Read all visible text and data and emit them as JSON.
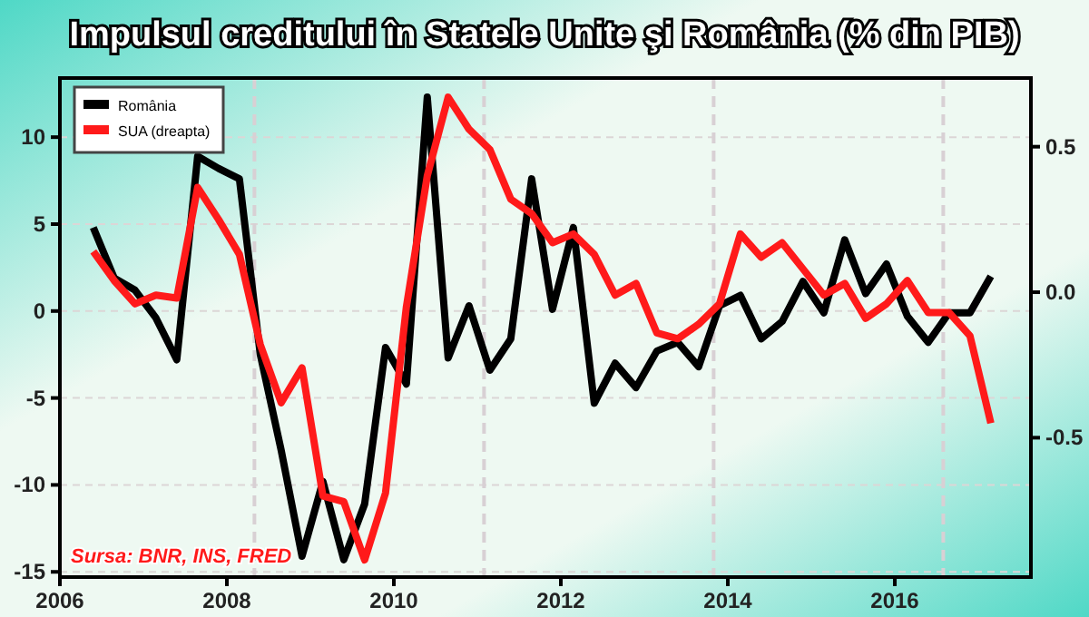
{
  "chart_data": {
    "type": "line",
    "title": "Impulsul creditului în Statele Unite şi România (% din PIB)",
    "x": [
      2006.4,
      2006.65,
      2006.9,
      2007.15,
      2007.4,
      2007.65,
      2007.9,
      2008.15,
      2008.4,
      2008.65,
      2008.9,
      2009.15,
      2009.4,
      2009.65,
      2009.9,
      2010.15,
      2010.4,
      2010.65,
      2010.9,
      2011.15,
      2011.4,
      2011.65,
      2011.9,
      2012.15,
      2012.4,
      2012.65,
      2012.9,
      2013.15,
      2013.4,
      2013.65,
      2013.9,
      2014.15,
      2014.4,
      2014.65,
      2014.9,
      2015.15,
      2015.4,
      2015.65,
      2015.9,
      2016.15,
      2016.4,
      2016.65,
      2016.9,
      2017.15
    ],
    "series": [
      {
        "name": "România",
        "color": "#000000",
        "values": [
          4.8,
          1.9,
          1.2,
          -0.4,
          -2.8,
          8.9,
          8.2,
          7.6,
          -2.5,
          -8,
          -14.1,
          -9.8,
          -14.3,
          -11.1,
          -2.1,
          -4.2,
          12.3,
          -2.7,
          0.3,
          -3.4,
          -1.6,
          7.6,
          0.1,
          4.8,
          -5.3,
          -3,
          -4.4,
          -2.3,
          -1.8,
          -3.2,
          0.3,
          0.9,
          -1.6,
          -0.6,
          1.7,
          -0.1,
          4.1,
          1,
          2.7,
          -0.3,
          -1.8,
          -0.1,
          -0.1,
          2
        ]
      },
      {
        "name": "SUA (dreapta)",
        "color": "#ff1a1a",
        "axis": "y2",
        "values": [
          0.14,
          0.04,
          -0.04,
          -0.01,
          -0.02,
          0.36,
          0.25,
          0.13,
          -0.18,
          -0.38,
          -0.26,
          -0.7,
          -0.72,
          -0.92,
          -0.69,
          -0.05,
          0.4,
          0.67,
          0.56,
          0.49,
          0.32,
          0.27,
          0.17,
          0.2,
          0.13,
          -0.01,
          0.03,
          -0.14,
          -0.16,
          -0.11,
          -0.04,
          0.2,
          0.12,
          0.17,
          0.08,
          -0.01,
          0.03,
          -0.09,
          -0.04,
          0.04,
          -0.07,
          -0.07,
          -0.15,
          -0.45
        ]
      }
    ],
    "xlim": [
      2006,
      2017.63
    ],
    "xticks": [
      2006,
      2008,
      2010,
      2012,
      2014,
      2016
    ],
    "ylim": [
      -15.3,
      13.4
    ],
    "yticks": [
      -15,
      -10,
      -5,
      0,
      5,
      10
    ],
    "y2lim": [
      -0.979,
      0.736
    ],
    "y2ticks": [
      {
        "value": -0.5,
        "label": "-0.5"
      },
      {
        "value": 0,
        "label": "0.0"
      },
      {
        "value": 0.5,
        "label": "0.5"
      }
    ],
    "ref_lines": [
      {
        "axis": "x",
        "value": 2008.33,
        "color": "#d8d0d4",
        "line_style": "dashed"
      },
      {
        "axis": "x",
        "value": 2011.08,
        "color": "#d8d0d4",
        "line_style": "dashed"
      },
      {
        "axis": "x",
        "value": 2013.83,
        "color": "#d8d0d4",
        "line_style": "dashed"
      },
      {
        "axis": "x",
        "value": 2016.58,
        "color": "#d8d0d4",
        "line_style": "dashed"
      }
    ],
    "grid": "y",
    "legend": "top left",
    "marker": "none",
    "line_style": "solid",
    "annotations": [
      "Sursa: BNR, INS, FRED"
    ]
  }
}
